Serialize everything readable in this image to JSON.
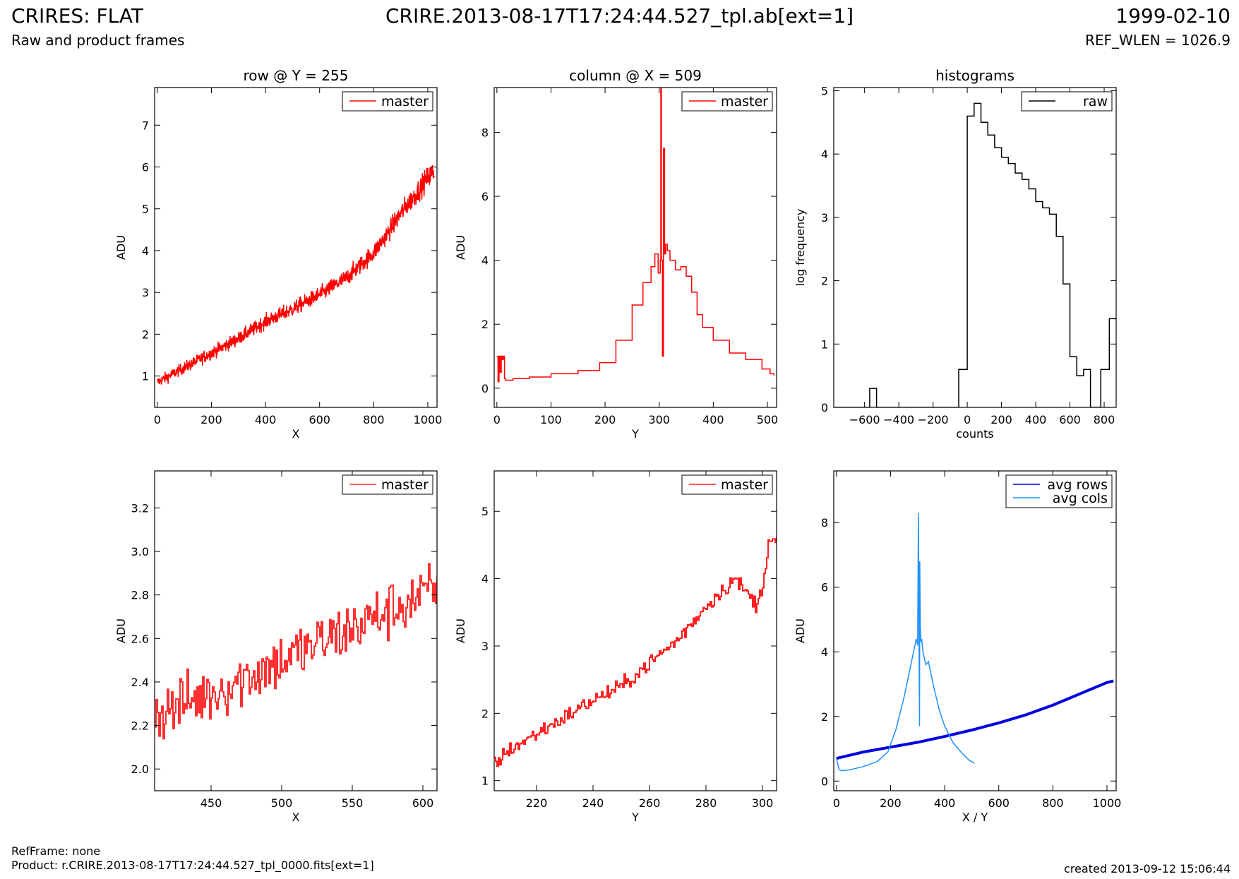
{
  "header": {
    "left_title": "CRIRES: FLAT",
    "left_subtitle": "Raw and product frames",
    "center_title": "CRIRE.2013-08-17T17:24:44.527_tpl.ab[ext=1]",
    "right_title": "1999-02-10",
    "right_subtitle": "REF_WLEN = 1026.9"
  },
  "footer": {
    "refframe": "RefFrame: none",
    "product": "Product: r.CRIRE.2013-08-17T17:24:44.527_tpl_0000.fits[ext=1]",
    "created": "created 2013-09-12 15:06:44"
  },
  "chart_data": [
    {
      "id": "row",
      "type": "line",
      "title": "row @ Y = 255",
      "xlabel": "X",
      "ylabel": "ADU",
      "xlim": [
        -10,
        1034
      ],
      "ylim": [
        0.25,
        7.9
      ],
      "xticks": [
        0,
        200,
        400,
        600,
        800,
        1000
      ],
      "yticks": [
        1,
        2,
        3,
        4,
        5,
        6,
        7
      ],
      "legend": "top-right",
      "series": [
        {
          "name": "master",
          "color": "#ff0000",
          "style": "noisy",
          "noise": 0.18,
          "x": [
            0,
            100,
            200,
            300,
            400,
            500,
            600,
            700,
            800,
            850,
            900,
            950,
            1000,
            1024
          ],
          "y": [
            0.85,
            1.2,
            1.55,
            1.9,
            2.3,
            2.6,
            2.95,
            3.35,
            3.95,
            4.4,
            4.9,
            5.3,
            5.75,
            5.9
          ]
        }
      ]
    },
    {
      "id": "col",
      "type": "line",
      "title": "column @ X = 509",
      "xlabel": "Y",
      "ylabel": "ADU",
      "xlim": [
        -5,
        517
      ],
      "ylim": [
        -0.6,
        9.4
      ],
      "xticks": [
        0,
        100,
        200,
        300,
        400,
        500
      ],
      "yticks": [
        0,
        2,
        4,
        6,
        8
      ],
      "legend": "top-right",
      "series": [
        {
          "name": "master",
          "color": "#ff0000",
          "style": "steps",
          "x": [
            0,
            2,
            4,
            6,
            8,
            10,
            12,
            14,
            16,
            30,
            60,
            100,
            150,
            190,
            220,
            250,
            270,
            285,
            292,
            298,
            302,
            303,
            304,
            306,
            308,
            310,
            312,
            315,
            320,
            330,
            340,
            350,
            360,
            370,
            380,
            400,
            430,
            460,
            490,
            505,
            512
          ],
          "y": [
            1.0,
            0.2,
            1.0,
            0.5,
            1.0,
            0.9,
            1.0,
            0.3,
            0.25,
            0.3,
            0.35,
            0.45,
            0.55,
            0.8,
            1.5,
            2.6,
            3.3,
            3.8,
            4.2,
            3.6,
            4.0,
            9.4,
            4.0,
            1.0,
            7.5,
            4.2,
            4.5,
            4.3,
            4.0,
            3.7,
            3.8,
            3.5,
            3.0,
            2.3,
            1.9,
            1.5,
            1.1,
            0.9,
            0.6,
            0.45,
            0.4
          ]
        }
      ]
    },
    {
      "id": "hist",
      "type": "histogram",
      "title": "histograms",
      "xlabel": "counts",
      "ylabel": "log frequency",
      "xlim": [
        -780,
        870
      ],
      "ylim": [
        0,
        5.05
      ],
      "xticks": [
        -600,
        -400,
        -200,
        0,
        200,
        400,
        600,
        800
      ],
      "yticks": [
        0,
        1,
        2,
        3,
        4,
        5
      ],
      "legend": "top-right",
      "series": [
        {
          "name": "raw",
          "color": "#000000",
          "style": "steps-post",
          "x": [
            -780,
            -570,
            -530,
            -90,
            -50,
            0,
            40,
            80,
            120,
            160,
            200,
            240,
            280,
            320,
            360,
            400,
            440,
            480,
            520,
            560,
            600,
            640,
            680,
            720,
            780,
            830,
            870
          ],
          "y": [
            0,
            0.3,
            0,
            0,
            0.6,
            4.6,
            4.8,
            4.5,
            4.3,
            4.1,
            3.95,
            3.85,
            3.7,
            3.6,
            3.45,
            3.25,
            3.15,
            3.05,
            2.7,
            1.95,
            0.8,
            0.5,
            0.6,
            0,
            0.6,
            1.4,
            1.4
          ]
        }
      ]
    },
    {
      "id": "rowzoom",
      "type": "line",
      "title": "",
      "xlabel": "X",
      "ylabel": "ADU",
      "xlim": [
        410,
        610
      ],
      "ylim": [
        1.9,
        3.37
      ],
      "xticks": [
        450,
        500,
        550,
        600
      ],
      "yticks": [
        2.0,
        2.2,
        2.4,
        2.6,
        2.8,
        3.0,
        3.2
      ],
      "legend": "top-right",
      "series": [
        {
          "name": "master",
          "color": "#ff3030",
          "style": "noisy-steps",
          "noise": 0.14,
          "x": [
            410,
            450,
            500,
            550,
            600,
            610
          ],
          "y": [
            2.25,
            2.35,
            2.5,
            2.65,
            2.8,
            2.83
          ]
        }
      ]
    },
    {
      "id": "colzoom",
      "type": "line",
      "title": "",
      "xlabel": "Y",
      "ylabel": "ADU",
      "xlim": [
        205,
        305
      ],
      "ylim": [
        0.85,
        5.6
      ],
      "xticks": [
        220,
        240,
        260,
        280,
        300
      ],
      "yticks": [
        1,
        2,
        3,
        4,
        5
      ],
      "legend": "top-right",
      "series": [
        {
          "name": "master",
          "color": "#ff2020",
          "style": "noisy-steps",
          "noise": 0.12,
          "x": [
            205,
            210,
            220,
            230,
            240,
            250,
            260,
            270,
            280,
            290,
            298,
            300,
            302,
            305
          ],
          "y": [
            1.25,
            1.45,
            1.7,
            1.95,
            2.2,
            2.4,
            2.75,
            3.1,
            3.6,
            4.0,
            3.6,
            3.9,
            4.6,
            4.55
          ]
        }
      ]
    },
    {
      "id": "avg",
      "type": "line",
      "title": "",
      "xlabel": "X / Y",
      "ylabel": "ADU",
      "xlim": [
        -10,
        1034
      ],
      "ylim": [
        -0.3,
        9.6
      ],
      "xticks": [
        0,
        200,
        400,
        600,
        800,
        1000
      ],
      "yticks": [
        0,
        2,
        4,
        6,
        8
      ],
      "legend": "top-right",
      "series": [
        {
          "name": "avg rows",
          "color": "#0000e0",
          "style": "thick",
          "x": [
            0,
            100,
            200,
            300,
            400,
            500,
            600,
            700,
            800,
            900,
            1000,
            1024
          ],
          "y": [
            0.7,
            0.9,
            1.05,
            1.2,
            1.38,
            1.58,
            1.8,
            2.05,
            2.35,
            2.7,
            3.05,
            3.1
          ]
        },
        {
          "name": "avg cols",
          "color": "#1e90ff",
          "style": "line",
          "x": [
            0,
            10,
            20,
            50,
            100,
            150,
            190,
            220,
            250,
            270,
            285,
            295,
            300,
            303,
            305,
            307,
            308,
            310,
            312,
            315,
            320,
            330,
            340,
            350,
            360,
            380,
            400,
            430,
            460,
            490,
            510
          ],
          "y": [
            0.7,
            0.35,
            0.32,
            0.35,
            0.45,
            0.6,
            0.9,
            1.6,
            2.6,
            3.4,
            4.0,
            4.4,
            4.2,
            8.3,
            4.5,
            1.7,
            6.8,
            4.8,
            4.3,
            4.4,
            4.0,
            3.6,
            3.7,
            3.3,
            2.9,
            2.2,
            1.7,
            1.2,
            0.9,
            0.65,
            0.55
          ]
        }
      ]
    }
  ]
}
